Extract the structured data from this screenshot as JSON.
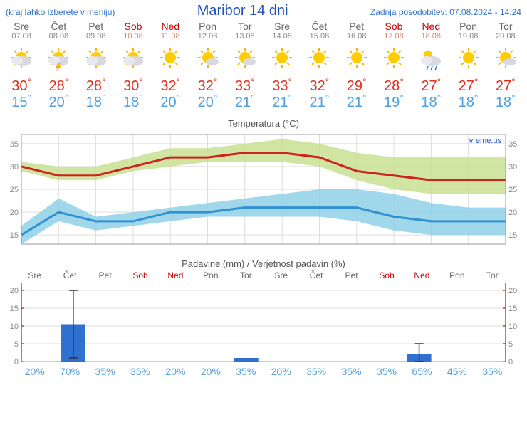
{
  "header": {
    "menu_hint": "(kraj lahko izberete v meniju)",
    "title": "Maribor 14 dni",
    "update": "Zadnja posodobitev: 07.08.2024 - 14:24"
  },
  "days": [
    {
      "name": "Sre",
      "date": "07.08",
      "weekend": false,
      "icon": "partly",
      "hi": 30,
      "lo": 15,
      "prob": 20,
      "precip": 0
    },
    {
      "name": "Čet",
      "date": "08.08",
      "weekend": false,
      "icon": "storm",
      "hi": 28,
      "lo": 20,
      "prob": 70,
      "precip": 10.5,
      "err_lo": 1,
      "err_hi": 20
    },
    {
      "name": "Pet",
      "date": "09.08",
      "weekend": false,
      "icon": "partly",
      "hi": 28,
      "lo": 18,
      "prob": 35,
      "precip": 0
    },
    {
      "name": "Sob",
      "date": "10.08",
      "weekend": true,
      "icon": "partly",
      "hi": 30,
      "lo": 18,
      "prob": 35,
      "precip": 0
    },
    {
      "name": "Ned",
      "date": "11.08",
      "weekend": true,
      "icon": "sun",
      "hi": 32,
      "lo": 20,
      "prob": 20,
      "precip": 0
    },
    {
      "name": "Pon",
      "date": "12.08",
      "weekend": false,
      "icon": "mostly",
      "hi": 32,
      "lo": 20,
      "prob": 20,
      "precip": 0
    },
    {
      "name": "Tor",
      "date": "13.08",
      "weekend": false,
      "icon": "mostly",
      "hi": 33,
      "lo": 21,
      "prob": 35,
      "precip": 1
    },
    {
      "name": "Sre",
      "date": "14.08",
      "weekend": false,
      "icon": "sun",
      "hi": 33,
      "lo": 21,
      "prob": 20,
      "precip": 0
    },
    {
      "name": "Čet",
      "date": "15.08",
      "weekend": false,
      "icon": "sun",
      "hi": 32,
      "lo": 21,
      "prob": 35,
      "precip": 0
    },
    {
      "name": "Pet",
      "date": "16.08",
      "weekend": false,
      "icon": "sun",
      "hi": 29,
      "lo": 21,
      "prob": 35,
      "precip": 0
    },
    {
      "name": "Sob",
      "date": "17.08",
      "weekend": true,
      "icon": "sun",
      "hi": 28,
      "lo": 19,
      "prob": 35,
      "precip": 0
    },
    {
      "name": "Ned",
      "date": "18.08",
      "weekend": true,
      "icon": "shower",
      "hi": 27,
      "lo": 18,
      "prob": 65,
      "precip": 2,
      "err_lo": 0,
      "err_hi": 5
    },
    {
      "name": "Pon",
      "date": "19.08",
      "weekend": false,
      "icon": "sun",
      "hi": 27,
      "lo": 18,
      "prob": 45,
      "precip": 0
    },
    {
      "name": "Tor",
      "date": "20.08",
      "weekend": false,
      "icon": "mostly",
      "hi": 27,
      "lo": 18,
      "prob": 35,
      "precip": 0
    }
  ],
  "temp_chart": {
    "title": "Temperatura (°C)",
    "watermark": "vreme.us",
    "ylim": [
      13,
      37
    ],
    "ytick_step": 5,
    "yticks": [
      15,
      20,
      25,
      30,
      35
    ],
    "background": "#ffffff",
    "grid_color": "#dddddd",
    "line_hi_color": "#d02020",
    "band_hi_color": "#c8e090",
    "line_lo_color": "#3090d0",
    "band_lo_color": "#90d0e8",
    "hi_band": [
      [
        29,
        31
      ],
      [
        27,
        30
      ],
      [
        27,
        30
      ],
      [
        29,
        32
      ],
      [
        30,
        34
      ],
      [
        31,
        34
      ],
      [
        31,
        35
      ],
      [
        31,
        36
      ],
      [
        30,
        35
      ],
      [
        27,
        33
      ],
      [
        25,
        32
      ],
      [
        24,
        32
      ],
      [
        24,
        32
      ],
      [
        24,
        32
      ]
    ],
    "hi_line": [
      30,
      28,
      28,
      30,
      32,
      32,
      33,
      33,
      32,
      29,
      28,
      27,
      27,
      27
    ],
    "lo_band": [
      [
        13,
        17
      ],
      [
        18,
        23
      ],
      [
        16,
        19
      ],
      [
        17,
        20
      ],
      [
        18,
        21
      ],
      [
        19,
        22
      ],
      [
        19,
        23
      ],
      [
        19,
        24
      ],
      [
        19,
        25
      ],
      [
        18,
        25
      ],
      [
        16,
        24
      ],
      [
        15,
        22
      ],
      [
        15,
        21
      ],
      [
        15,
        21
      ]
    ],
    "lo_line": [
      15,
      20,
      18,
      18,
      20,
      20,
      21,
      21,
      21,
      21,
      19,
      18,
      18,
      18
    ]
  },
  "precip_chart": {
    "title": "Padavine (mm) / Verjetnost padavin (%)",
    "ylim": [
      0,
      22
    ],
    "yticks": [
      0,
      5,
      10,
      15,
      20
    ],
    "bar_color": "#3070d0",
    "errorbar_color": "#333333",
    "grid_color": "#dddddd",
    "axis_color": "#c04040"
  }
}
